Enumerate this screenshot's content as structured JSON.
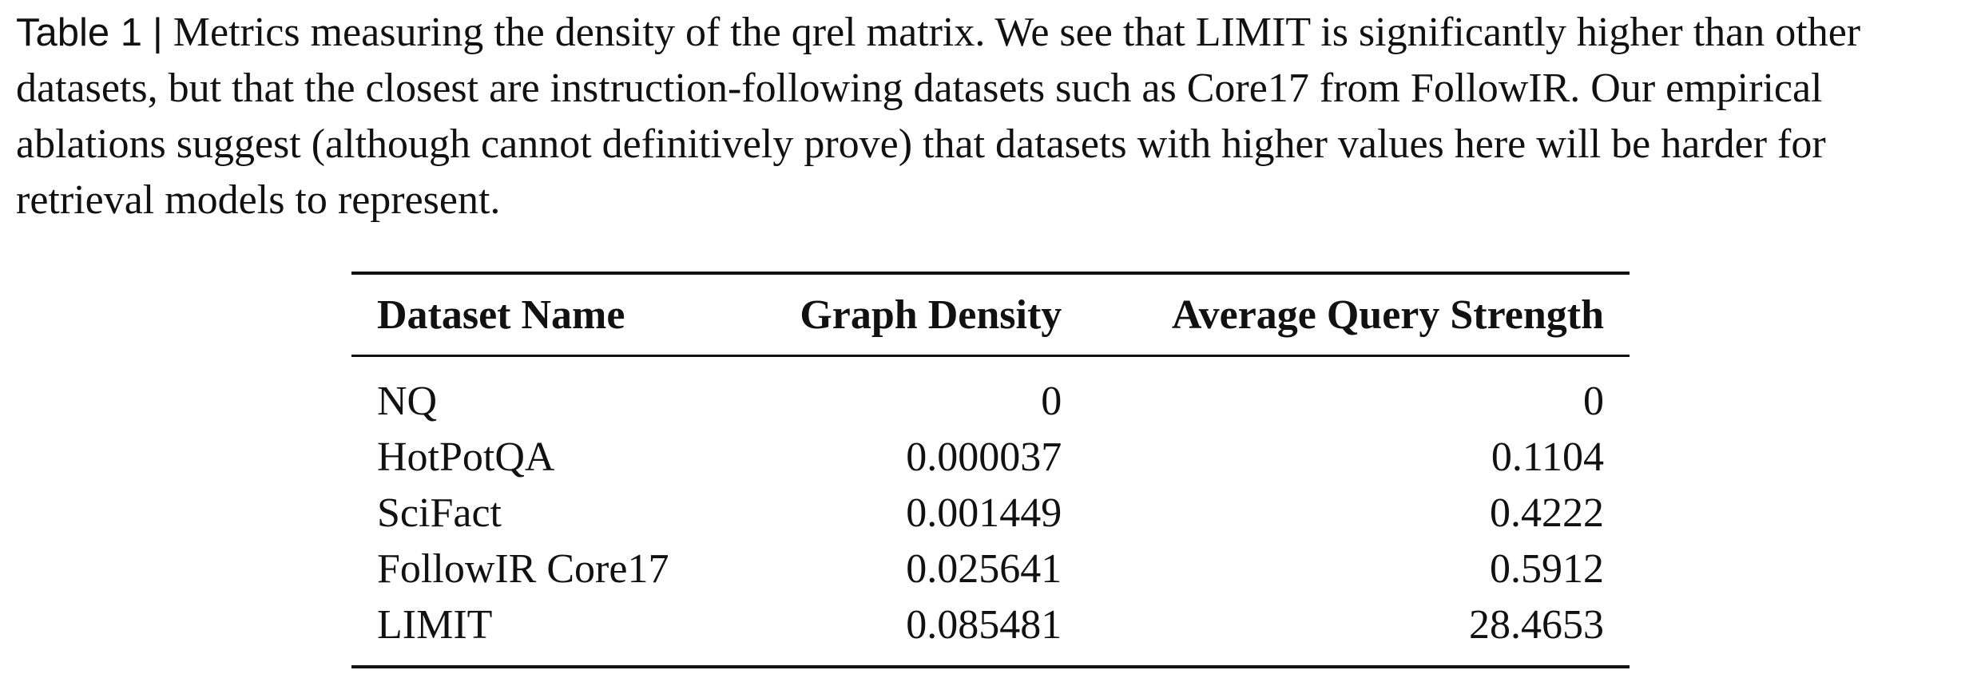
{
  "caption": {
    "label": "Table 1",
    "separator": "|",
    "text": "Metrics measuring the density of the qrel matrix. We see that LIMIT is significantly higher than other datasets, but that the closest are instruction-following datasets such as Core17 from FollowIR. Our empirical ablations suggest (although cannot definitively prove) that datasets with higher values here will be harder for retrieval models to represent."
  },
  "table": {
    "headers": [
      "Dataset Name",
      "Graph Density",
      "Average Query Strength"
    ],
    "rows": [
      [
        "NQ",
        "0",
        "0"
      ],
      [
        "HotPotQA",
        "0.000037",
        "0.1104"
      ],
      [
        "SciFact",
        "0.001449",
        "0.4222"
      ],
      [
        "FollowIR Core17",
        "0.025641",
        "0.5912"
      ],
      [
        "LIMIT",
        "0.085481",
        "28.4653"
      ]
    ]
  }
}
